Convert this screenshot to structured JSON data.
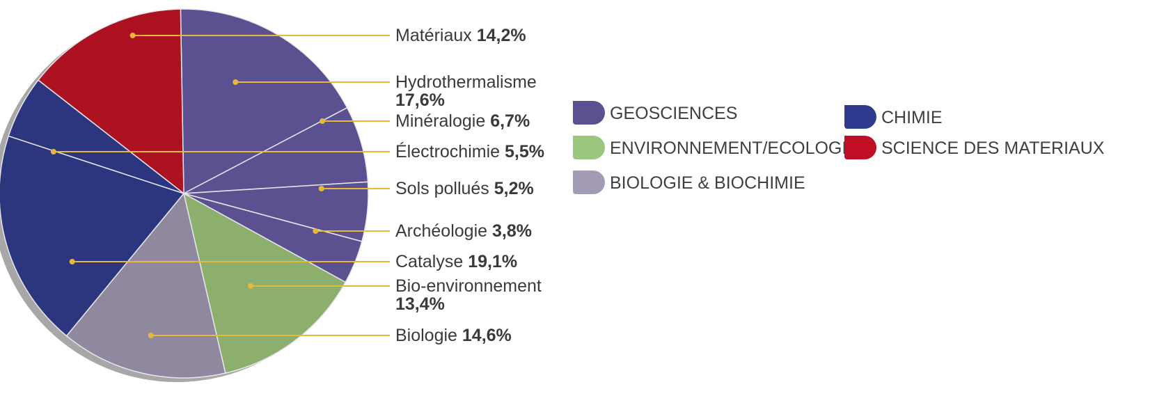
{
  "chart_data": {
    "type": "pie",
    "slices": [
      {
        "label": "Hydrothermalisme",
        "value": "17,6%",
        "pct": 17.6,
        "group": "geosciences"
      },
      {
        "label": "Minéralogie",
        "value": "6,7%",
        "pct": 6.7,
        "group": "geosciences"
      },
      {
        "label": "Sols pollués",
        "value": "5,2%",
        "pct": 5.2,
        "group": "geosciences"
      },
      {
        "label": "Archéologie",
        "value": "3,8%",
        "pct": 3.8,
        "group": "geosciences"
      },
      {
        "label": "Bio-environnement",
        "value": "13,4%",
        "pct": 13.4,
        "group": "environnement"
      },
      {
        "label": "Biologie",
        "value": "14,6%",
        "pct": 14.6,
        "group": "biologie"
      },
      {
        "label": "Catalyse",
        "value": "19,1%",
        "pct": 19.1,
        "group": "chimie"
      },
      {
        "label": "Électrochimie",
        "value": "5,5%",
        "pct": 5.5,
        "group": "chimie"
      },
      {
        "label": "Matériaux",
        "value": "14,2%",
        "pct": 14.2,
        "group": "materiaux"
      }
    ],
    "legend": [
      {
        "key": "geosciences",
        "label": "GEOSCIENCES",
        "color": "#5b5190"
      },
      {
        "key": "environnement",
        "label": "ENVIRONNEMENT/ECOLOGIE",
        "color": "#9ac77d"
      },
      {
        "key": "biologie",
        "label": "BIOLOGIE & BIOCHIMIE",
        "color": "#a39bb5"
      },
      {
        "key": "chimie",
        "label": "CHIMIE",
        "color": "#2f3b8f"
      },
      {
        "key": "materiaux",
        "label": "SCIENCE DES MATERIAUX",
        "color": "#c00f25"
      }
    ],
    "slice_colors": {
      "geosciences": "#5b5190",
      "environnement": "#8caf6e",
      "biologie": "#8f889f",
      "chimie": "#2c367e",
      "materiaux": "#ac121f"
    },
    "leader_color": "#e7b93a",
    "shadow_color": "#a7a7a7",
    "legend_placement": "right"
  }
}
